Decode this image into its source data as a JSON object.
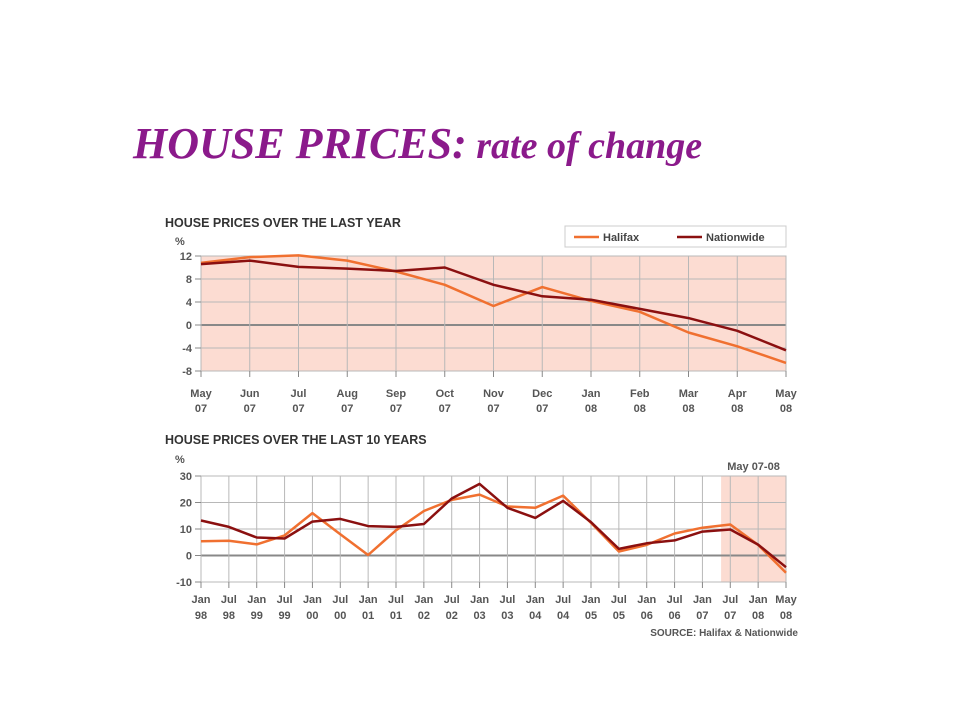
{
  "slide": {
    "title_main": "HOUSE PRICES:",
    "title_sub": " rate of change"
  },
  "source": "SOURCE: Halifax & Nationwide",
  "chart_data": [
    {
      "type": "line",
      "title": "HOUSE PRICES OVER THE LAST YEAR",
      "ylabel": "%",
      "ylim": [
        -8,
        12
      ],
      "yticks": [
        "12",
        "8",
        "4",
        "0",
        "-4",
        "-8"
      ],
      "categories": [
        "May 07",
        "Jun 07",
        "Jul 07",
        "Aug 07",
        "Sep 07",
        "Oct 07",
        "Nov 07",
        "Dec 07",
        "Jan 08",
        "Feb 08",
        "Mar 08",
        "Apr 08",
        "May 08"
      ],
      "legend": [
        "Halifax",
        "Nationwide"
      ],
      "series": [
        {
          "name": "Halifax",
          "color": "#f07030",
          "values": [
            10.8,
            11.8,
            12.1,
            11.2,
            9.3,
            7.0,
            3.3,
            6.6,
            4.2,
            2.3,
            -1.3,
            -3.7,
            -6.6
          ]
        },
        {
          "name": "Nationwide",
          "color": "#8b1010",
          "values": [
            10.6,
            11.2,
            10.1,
            9.8,
            9.4,
            10.0,
            7.0,
            5.0,
            4.4,
            2.8,
            1.2,
            -1.0,
            -4.4
          ]
        }
      ],
      "background": "#fcdcd2",
      "grid": true
    },
    {
      "type": "line",
      "title": "HOUSE PRICES OVER THE LAST 10 YEARS",
      "ylabel": "%",
      "ylim": [
        -10,
        30
      ],
      "yticks": [
        "30",
        "20",
        "10",
        "0",
        "-10"
      ],
      "categories": [
        "Jan 98",
        "Jul 98",
        "Jan 99",
        "Jul 99",
        "Jan 00",
        "Jul 00",
        "Jan 01",
        "Jul 01",
        "Jan 02",
        "Jul 02",
        "Jan 03",
        "Jul 03",
        "Jan 04",
        "Jul 04",
        "Jan 05",
        "Jul 05",
        "Jan 06",
        "Jul 06",
        "Jan 07",
        "Jul 07",
        "Jan 08",
        "May 08"
      ],
      "highlight": {
        "label": "May 07-08",
        "from": 18.67,
        "to": 21,
        "color": "#fcdcd2"
      },
      "series": [
        {
          "name": "Halifax",
          "color": "#f07030",
          "values": [
            5.4,
            5.6,
            4.2,
            7.6,
            16.0,
            8.0,
            0.2,
            9.5,
            16.8,
            21.0,
            23.0,
            18.5,
            18.0,
            22.6,
            12.3,
            1.5,
            4.0,
            8.3,
            10.5,
            11.7,
            4.0,
            -6.5
          ]
        },
        {
          "name": "Nationwide",
          "color": "#8b1010",
          "values": [
            13.2,
            10.8,
            6.8,
            6.4,
            12.8,
            13.8,
            11.1,
            10.8,
            11.9,
            21.5,
            27.0,
            18.0,
            14.2,
            20.6,
            12.6,
            2.5,
            4.6,
            5.7,
            9.0,
            9.8,
            4.1,
            -4.4
          ]
        }
      ],
      "grid": true
    }
  ]
}
